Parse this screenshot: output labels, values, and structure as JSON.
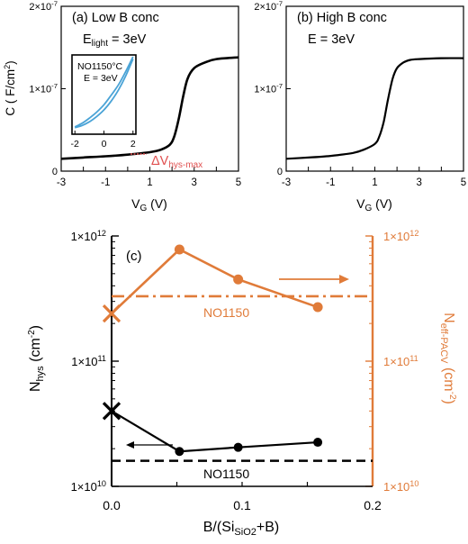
{
  "colors": {
    "black": "#000000",
    "orange": "#e07b39",
    "blue": "#4aa3d6",
    "red": "#e05050"
  },
  "panel_a": {
    "title": "(a) Low B conc",
    "energy_prefix": "E",
    "energy_sub": "light",
    "energy_value": " = 3eV",
    "y_unit_label": "C ( F/cm",
    "y_unit_sup": "2",
    "y_unit_close": ")",
    "annotation_delta": "ΔV",
    "annotation_sub": "hys-max",
    "inset_title_1": "NO1150°C",
    "inset_title_2": "E = 3eV",
    "inset_xticks": [
      "-2",
      "0",
      "2"
    ]
  },
  "panel_b": {
    "title": "(b) High B conc",
    "energy_label": "E = 3eV"
  },
  "panel_c": {
    "title": "(c)",
    "ylabel_main": "N",
    "ylabel_sub": "hys",
    "ylabel_unit": " (cm",
    "ylabel_sup": "-2",
    "ylabel_close": ")",
    "y2label_main": "N",
    "y2label_sub": "eff-PACV",
    "y2label_unit": " (cm",
    "y2label_sup": "-2",
    "y2label_close": ")",
    "xlabel_main": "B/(Si",
    "xlabel_sub": "SiO2",
    "xlabel_close": "+B)",
    "ref_label_orange": "NO1150",
    "ref_label_black": "NO1150",
    "xticks": [
      "0.0",
      "0.1",
      "0.2"
    ]
  },
  "shared": {
    "vg_label": "V",
    "vg_sub": "G",
    "vg_unit": " (V)",
    "cv_xticks": [
      "-3",
      "-1",
      "1",
      "3",
      "5"
    ],
    "cv_yticks": [
      {
        "value": 0,
        "text": "0"
      },
      {
        "value": 1e-07,
        "text": "1×10",
        "exp": "-7"
      },
      {
        "value": 2e-07,
        "text": "2×10",
        "exp": "-7"
      }
    ],
    "log_yticks": [
      {
        "value": 10000000000.0,
        "text": "1×10",
        "exp": "10"
      },
      {
        "value": 100000000000.0,
        "text": "1×10",
        "exp": "11"
      },
      {
        "value": 1000000000000.0,
        "text": "1×10",
        "exp": "12"
      }
    ]
  },
  "chart_data": [
    {
      "type": "line",
      "panel": "(a) Low B conc",
      "xlim": [
        -3,
        5
      ],
      "ylim": [
        0,
        2e-07
      ],
      "x": [
        -3,
        -2,
        -1,
        0,
        1,
        1.5,
        1.9,
        2.1,
        2.3,
        2.5,
        2.7,
        3,
        3.5,
        4,
        5
      ],
      "series": [
        {
          "values": [
            1.5e-08,
            1.65e-08,
            1.8e-08,
            2e-08,
            2.3e-08,
            2.6e-08,
            3.2e-08,
            4.2e-08,
            6.3e-08,
            9e-08,
            1.12e-07,
            1.25e-07,
            1.32e-07,
            1.36e-07,
            1.38e-07
          ]
        }
      ]
    },
    {
      "type": "line",
      "panel": "inset NO1150°C",
      "xlim": [
        -2.2,
        2.2
      ],
      "x": [
        -2,
        -1.5,
        -1,
        -0.5,
        0,
        0.5,
        1,
        1.5,
        2
      ],
      "series": [
        {
          "values": [
            0.05,
            0.1,
            0.17,
            0.25,
            0.35,
            0.48,
            0.62,
            0.8,
            1.0
          ]
        },
        {
          "values": [
            0.04,
            0.07,
            0.12,
            0.19,
            0.28,
            0.4,
            0.55,
            0.74,
            0.97
          ]
        }
      ]
    },
    {
      "type": "line",
      "panel": "(b) High B conc",
      "xlim": [
        -3,
        5
      ],
      "ylim": [
        0,
        2e-07
      ],
      "x": [
        -3,
        -2,
        -1,
        0,
        0.5,
        1,
        1.2,
        1.4,
        1.6,
        1.8,
        2,
        2.3,
        2.6,
        3,
        4,
        5
      ],
      "series": [
        {
          "values": [
            1.5e-08,
            1.65e-08,
            1.85e-08,
            2.2e-08,
            2.6e-08,
            3.3e-08,
            4.2e-08,
            6e-08,
            8.8e-08,
            1.12e-07,
            1.25e-07,
            1.32e-07,
            1.35e-07,
            1.36e-07,
            1.37e-07,
            1.37e-07
          ]
        }
      ]
    },
    {
      "type": "line",
      "panel": "(c)",
      "xlabel": "B/(SiSiO2+B)",
      "ylabel": "Nhys (cm-2)",
      "y2label": "Neff-PACV (cm-2)",
      "xlim": [
        0,
        0.2
      ],
      "ylim": [
        10000000000.0,
        1000000000000.0
      ],
      "yscale": "log",
      "series": [
        {
          "axis": "left",
          "x": [
            0.052,
            0.097,
            0.158
          ],
          "values": [
            19000000000.0,
            20500000000.0,
            22500000000.0
          ]
        },
        {
          "axis": "right",
          "x": [
            0.052,
            0.097,
            0.158
          ],
          "values": [
            780000000000.0,
            450000000000.0,
            270000000000.0
          ]
        }
      ],
      "reference_markers": [
        {
          "axis": "left",
          "x": 0,
          "value": 40000000000.0
        },
        {
          "axis": "right",
          "x": 0,
          "value": 240000000000.0
        }
      ],
      "reference_lines": [
        {
          "axis": "left",
          "value": 16000000000.0,
          "label": "NO1150"
        },
        {
          "axis": "right",
          "value": 330000000000.0,
          "label": "NO1150"
        }
      ]
    }
  ]
}
